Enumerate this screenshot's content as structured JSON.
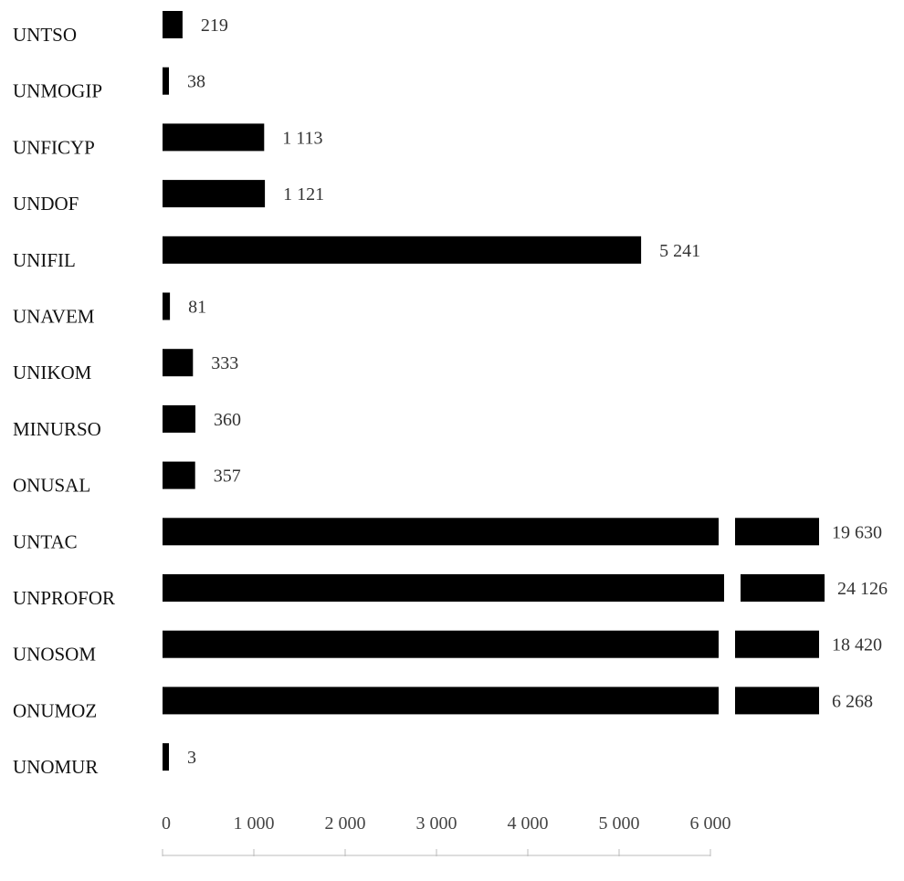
{
  "chart_data": {
    "type": "bar",
    "orientation": "horizontal",
    "categories": [
      "UNTSO",
      "UNMOGIP",
      "UNFICYP",
      "UNDOF",
      "UNIFIL",
      "UNAVEM",
      "UNIKOM",
      "MINURSO",
      "ONUSAL",
      "UNTAC",
      "UNPROFOR",
      "UNOSOM",
      "ONUMOZ",
      "UNOMUR"
    ],
    "values": [
      219,
      38,
      1113,
      1121,
      5241,
      81,
      333,
      360,
      357,
      19630,
      24126,
      18420,
      6268,
      3
    ],
    "value_labels": [
      "219",
      "38",
      "1 113",
      "1 121",
      "5 241",
      "81",
      "333",
      "360",
      "357",
      "19 630",
      "24 126",
      "18 420",
      "6 268",
      "3"
    ],
    "xlim": [
      0,
      6000
    ],
    "axis_break": true,
    "ticks": [
      0,
      1000,
      2000,
      3000,
      4000,
      5000,
      6000
    ],
    "tick_labels": [
      "0",
      "1 000",
      "2 000",
      "3 000",
      "4 000",
      "5 000",
      "6 000"
    ],
    "bar_color": "#000000",
    "title": "",
    "xlabel": "",
    "ylabel": "",
    "grid": false,
    "legend": false
  }
}
